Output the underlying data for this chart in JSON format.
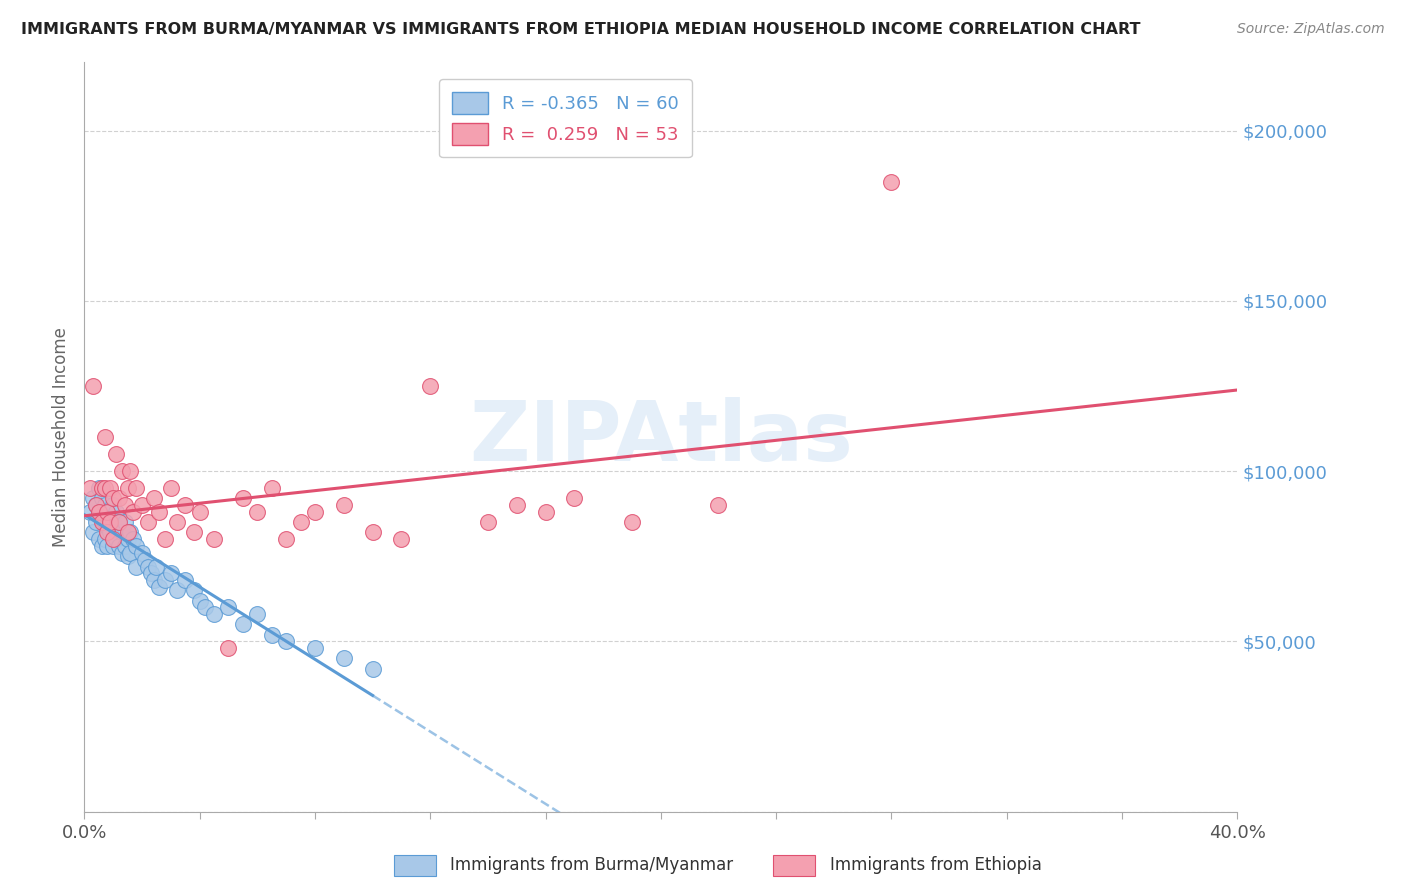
{
  "title": "IMMIGRANTS FROM BURMA/MYANMAR VS IMMIGRANTS FROM ETHIOPIA MEDIAN HOUSEHOLD INCOME CORRELATION CHART",
  "source": "Source: ZipAtlas.com",
  "ylabel": "Median Household Income",
  "xlim": [
    0.0,
    0.4
  ],
  "ylim": [
    0,
    220000
  ],
  "watermark": "ZIPAtlas",
  "background_color": "#ffffff",
  "grid_color": "#cccccc",
  "title_color": "#222222",
  "right_tick_color": "#5b9bd5",
  "series": [
    {
      "name": "Immigrants from Burma/Myanmar",
      "color": "#a8c8e8",
      "edge_color": "#5b9bd5",
      "R": -0.365,
      "N": 60,
      "trend_color": "#5b9bd5",
      "x": [
        0.002,
        0.003,
        0.003,
        0.004,
        0.004,
        0.005,
        0.005,
        0.005,
        0.006,
        0.006,
        0.006,
        0.007,
        0.007,
        0.007,
        0.008,
        0.008,
        0.008,
        0.009,
        0.009,
        0.01,
        0.01,
        0.01,
        0.011,
        0.011,
        0.012,
        0.012,
        0.013,
        0.013,
        0.014,
        0.014,
        0.015,
        0.015,
        0.016,
        0.016,
        0.017,
        0.018,
        0.018,
        0.02,
        0.021,
        0.022,
        0.023,
        0.024,
        0.025,
        0.026,
        0.028,
        0.03,
        0.032,
        0.035,
        0.038,
        0.04,
        0.042,
        0.045,
        0.05,
        0.055,
        0.06,
        0.065,
        0.07,
        0.08,
        0.09,
        0.1
      ],
      "y": [
        88000,
        92000,
        82000,
        90000,
        85000,
        95000,
        88000,
        80000,
        92000,
        86000,
        78000,
        90000,
        85000,
        80000,
        88000,
        84000,
        78000,
        86000,
        82000,
        90000,
        85000,
        78000,
        88000,
        80000,
        85000,
        78000,
        82000,
        76000,
        85000,
        78000,
        80000,
        75000,
        82000,
        76000,
        80000,
        78000,
        72000,
        76000,
        74000,
        72000,
        70000,
        68000,
        72000,
        66000,
        68000,
        70000,
        65000,
        68000,
        65000,
        62000,
        60000,
        58000,
        60000,
        55000,
        58000,
        52000,
        50000,
        48000,
        45000,
        42000
      ]
    },
    {
      "name": "Immigrants from Ethiopia",
      "color": "#f4a0b0",
      "edge_color": "#e05070",
      "R": 0.259,
      "N": 53,
      "trend_color": "#e05070",
      "x": [
        0.002,
        0.003,
        0.004,
        0.005,
        0.006,
        0.006,
        0.007,
        0.007,
        0.008,
        0.008,
        0.009,
        0.009,
        0.01,
        0.01,
        0.011,
        0.012,
        0.012,
        0.013,
        0.014,
        0.015,
        0.015,
        0.016,
        0.017,
        0.018,
        0.02,
        0.022,
        0.024,
        0.026,
        0.028,
        0.03,
        0.032,
        0.035,
        0.038,
        0.04,
        0.045,
        0.05,
        0.055,
        0.06,
        0.065,
        0.07,
        0.075,
        0.08,
        0.09,
        0.1,
        0.11,
        0.12,
        0.14,
        0.15,
        0.16,
        0.17,
        0.19,
        0.22,
        0.28
      ],
      "y": [
        95000,
        125000,
        90000,
        88000,
        95000,
        85000,
        110000,
        95000,
        88000,
        82000,
        95000,
        85000,
        92000,
        80000,
        105000,
        92000,
        85000,
        100000,
        90000,
        95000,
        82000,
        100000,
        88000,
        95000,
        90000,
        85000,
        92000,
        88000,
        80000,
        95000,
        85000,
        90000,
        82000,
        88000,
        80000,
        48000,
        92000,
        88000,
        95000,
        80000,
        85000,
        88000,
        90000,
        82000,
        80000,
        125000,
        85000,
        90000,
        88000,
        92000,
        85000,
        90000,
        185000
      ]
    }
  ]
}
